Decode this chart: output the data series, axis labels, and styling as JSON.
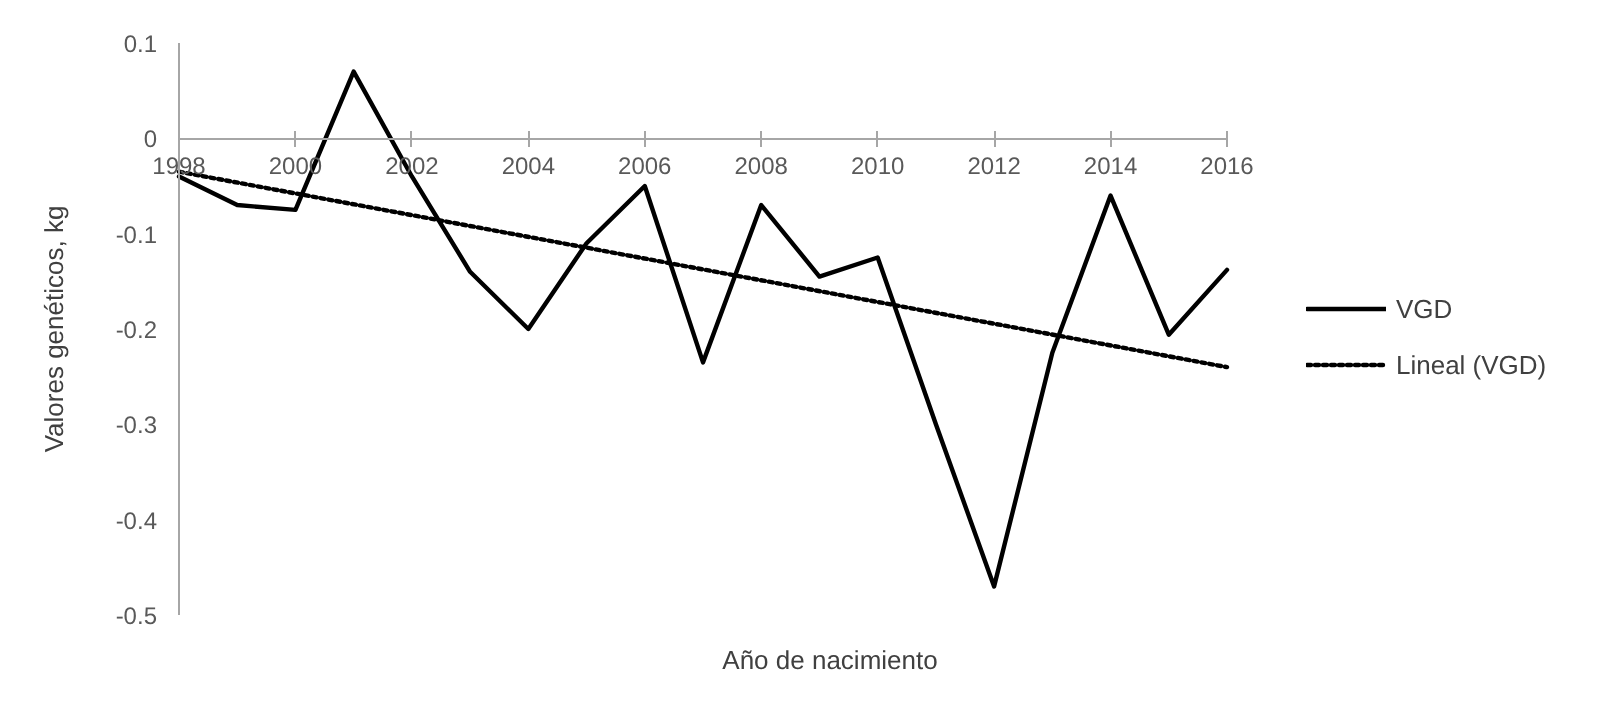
{
  "chart_data": {
    "type": "line",
    "xlabel": "Año de nacimiento",
    "ylabel": "Valores genéticos, kg",
    "x": [
      1998,
      1999,
      2000,
      2001,
      2002,
      2003,
      2004,
      2005,
      2006,
      2007,
      2008,
      2009,
      2010,
      2011,
      2012,
      2013,
      2014,
      2015,
      2016
    ],
    "series": [
      {
        "name": "VGD",
        "color": "#000000",
        "line_style": "solid",
        "values": [
          -0.04,
          -0.07,
          -0.075,
          0.07,
          -0.04,
          -0.14,
          -0.2,
          -0.11,
          -0.05,
          -0.235,
          -0.07,
          -0.145,
          -0.125,
          -0.3,
          -0.47,
          -0.225,
          -0.06,
          -0.206,
          -0.138
        ]
      },
      {
        "name": "Lineal (VGD)",
        "type": "line",
        "color": "#000000",
        "line_style": "dotted",
        "x": [
          1998,
          2016
        ],
        "values": [
          -0.035,
          -0.24
        ]
      }
    ],
    "xlim": [
      1998,
      2016
    ],
    "xticks": [
      1998,
      2000,
      2002,
      2004,
      2006,
      2008,
      2010,
      2012,
      2014,
      2016
    ],
    "ylim": [
      -0.5,
      0.1
    ],
    "yticks": [
      {
        "value": 0.1,
        "label": "0.1"
      },
      0,
      {
        "value": -0.1,
        "label": "-0.1"
      },
      {
        "value": -0.2,
        "label": "-0.2"
      },
      {
        "value": -0.3,
        "label": "-0.3"
      },
      {
        "value": -0.4,
        "label": "-0.4"
      },
      {
        "value": -0.5,
        "label": "-0.5"
      }
    ],
    "grid": false,
    "legend": "right",
    "marker": "none"
  }
}
